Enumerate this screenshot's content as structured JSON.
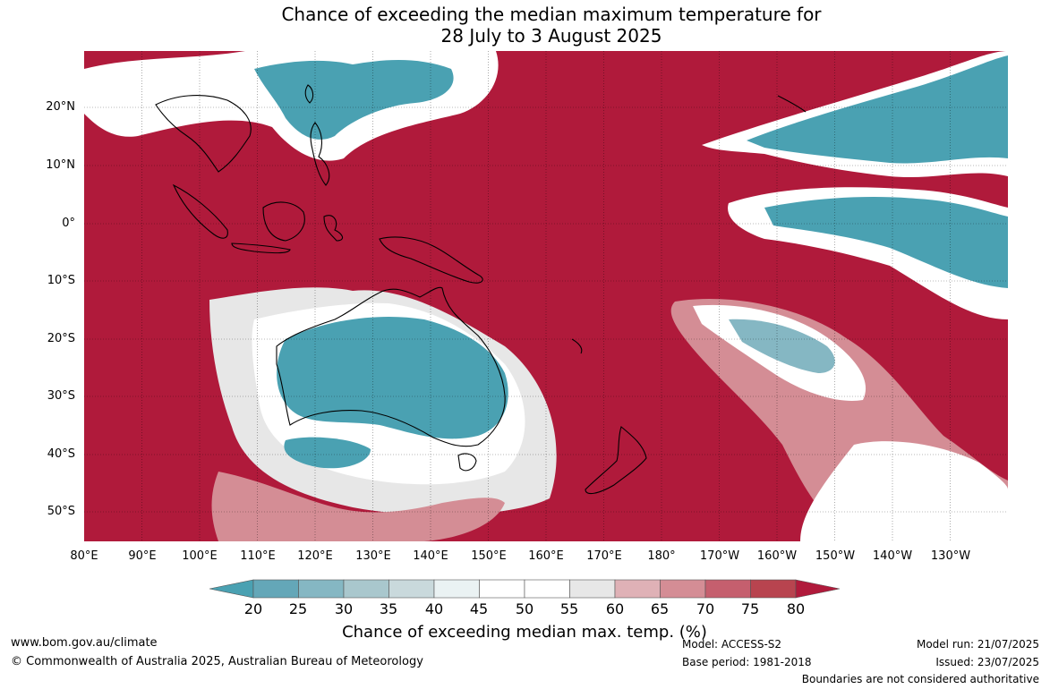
{
  "title": {
    "line1": "Chance of exceeding the median maximum temperature for",
    "line2": "28 July to 3 August 2025"
  },
  "map": {
    "latitude_labels": [
      "20°N",
      "10°N",
      "0°",
      "10°S",
      "20°S",
      "30°S",
      "40°S",
      "50°S"
    ],
    "longitude_labels": [
      "80°E",
      "90°E",
      "100°E",
      "110°E",
      "120°E",
      "130°E",
      "140°E",
      "150°E",
      "160°E",
      "170°E",
      "180°",
      "170°W",
      "160°W",
      "150°W",
      "140°W",
      "130°W"
    ],
    "latitude_range": [
      -55,
      29
    ],
    "longitude_range": [
      80,
      240
    ],
    "grid": true
  },
  "colorbar": {
    "ticks": [
      "20",
      "25",
      "30",
      "35",
      "40",
      "45",
      "50",
      "55",
      "60",
      "65",
      "70",
      "75",
      "80"
    ],
    "colors": [
      "#4aa1b2",
      "#64a7b8",
      "#85b7c3",
      "#a9c7cd",
      "#c9d9dc",
      "#eaf2f3",
      "#ffffff",
      "#ffffff",
      "#e7e7e7",
      "#dfb1b6",
      "#d48d95",
      "#c55f6e",
      "#b8444f",
      "#b01a3b"
    ],
    "label": "Chance of exceeding median max. temp. (%)"
  },
  "footer": {
    "website": "www.bom.gov.au/climate",
    "copyright": "© Commonwealth of Australia 2025, Australian Bureau of Meteorology",
    "model": "Model: ACCESS-S2",
    "base_period": "Base period: 1981-2018",
    "model_run": "Model run: 21/07/2025",
    "issued": "Issued: 23/07/2025",
    "disclaimer": "Boundaries are not considered authoritative"
  }
}
